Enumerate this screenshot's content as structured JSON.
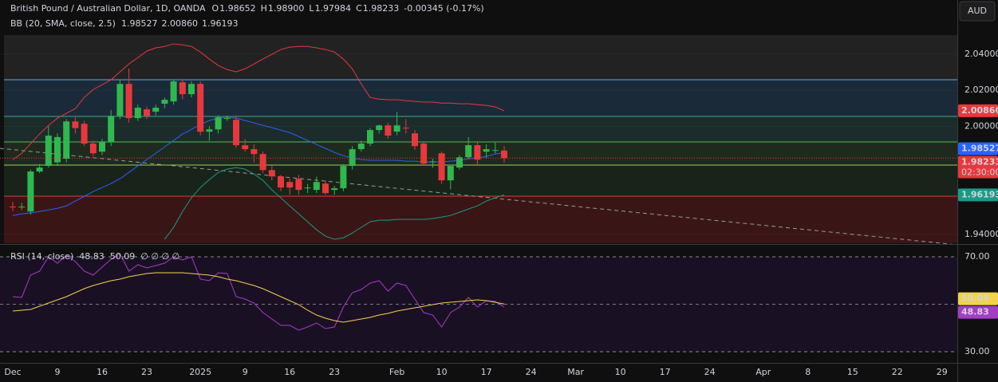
{
  "chart_data": [
    {
      "type": "candlestick",
      "title": "British Pound / Australian Dollar, 1D, OANDA",
      "ohlc_keys": [
        "O",
        "H",
        "L",
        "C"
      ],
      "ohlc_text": [
        "1.98652",
        "1.98900",
        "1.97984",
        "1.98233"
      ],
      "change": "-0.00345 (-0.17%)",
      "currency": "AUD",
      "countdown": "02:30:00",
      "indicator": "BB (20, SMA, close, 2.5)",
      "up_color": "#2fb84f",
      "down_color": "#e8383d",
      "categories": [
        "Dec",
        null,
        null,
        null,
        null,
        "9",
        null,
        null,
        null,
        null,
        "16",
        null,
        null,
        null,
        null,
        "23",
        null,
        null,
        null,
        null,
        null,
        "2025",
        null,
        null,
        null,
        null,
        "9",
        null,
        null,
        null,
        null,
        "16",
        null,
        null,
        null,
        null,
        "23",
        null,
        null,
        null,
        null,
        null,
        null,
        "Feb",
        null,
        null,
        null,
        null,
        "10",
        null,
        null,
        null,
        null,
        "17",
        null,
        null,
        null,
        null,
        "24",
        null,
        null,
        null,
        null,
        "Mar",
        null,
        null,
        null,
        null,
        "10",
        null,
        null,
        null,
        null,
        "17",
        null,
        null,
        null,
        null,
        "24",
        null,
        null,
        null,
        null,
        null,
        "Apr",
        null,
        null,
        null,
        null,
        "8",
        null,
        null,
        null,
        null,
        "15",
        null,
        null,
        null,
        null,
        "22",
        null,
        null,
        null,
        null,
        "29",
        null
      ],
      "open": [
        1.9554,
        1.955,
        1.9527,
        1.9749,
        1.978,
        1.98,
        1.982,
        2.0027,
        2.0014,
        1.9904,
        1.9859,
        1.9912,
        2.0058,
        2.0235,
        2.0045,
        2.0094,
        2.0081,
        2.0125,
        2.0138,
        2.0244,
        2.0178,
        2.0235,
        1.997,
        1.9983,
        2.0045,
        2.0036,
        1.9895,
        1.9873,
        1.9846,
        1.9757,
        1.9722,
        1.9691,
        1.9709,
        1.966,
        1.9647,
        1.9682,
        1.9647,
        1.9656,
        1.978,
        1.9873,
        1.9904,
        1.9979,
        2.0005,
        1.997,
        1.9992,
        1.9961,
        1.9904,
        1.9802,
        1.985,
        1.97,
        1.9771,
        1.9828,
        1.9895,
        1.9859,
        1.9868,
        1.98652,
        null,
        null,
        null,
        null,
        null,
        null,
        null,
        null,
        null,
        null,
        null,
        null,
        null,
        null,
        null,
        null,
        null,
        null,
        null,
        null,
        null,
        null,
        null,
        null,
        null,
        null,
        null,
        null,
        null,
        null,
        null,
        null,
        null,
        null,
        null,
        null,
        null,
        null,
        null,
        null,
        null,
        null,
        null,
        null,
        null,
        null,
        null,
        null,
        null,
        null
      ],
      "high": [
        1.958,
        1.9575,
        1.976,
        1.979,
        2.0,
        1.996,
        2.004,
        2.005,
        2.003,
        1.992,
        1.993,
        2.009,
        2.026,
        2.032,
        2.012,
        2.011,
        2.012,
        2.016,
        2.026,
        2.026,
        2.025,
        2.025,
        2.0,
        2.006,
        2.006,
        2.006,
        1.993,
        1.99,
        1.986,
        1.978,
        1.973,
        1.971,
        1.973,
        1.968,
        1.972,
        1.97,
        1.967,
        1.979,
        1.989,
        1.992,
        1.999,
        2.001,
        2.002,
        2.008,
        2.004,
        1.998,
        1.991,
        1.982,
        1.986,
        1.978,
        1.984,
        1.994,
        1.991,
        1.99,
        1.991,
        1.989,
        null,
        null,
        null,
        null,
        null,
        null,
        null,
        null,
        null,
        null,
        null,
        null,
        null,
        null,
        null,
        null,
        null,
        null,
        null,
        null,
        null,
        null,
        null,
        null,
        null,
        null,
        null,
        null,
        null,
        null,
        null,
        null,
        null,
        null,
        null,
        null,
        null,
        null,
        null,
        null,
        null,
        null,
        null,
        null,
        null,
        null,
        null,
        null,
        null,
        null
      ],
      "low": [
        1.953,
        1.9535,
        1.951,
        1.974,
        1.977,
        1.978,
        1.98,
        1.996,
        1.989,
        1.983,
        1.984,
        1.989,
        2.004,
        2.002,
        2.003,
        2.004,
        2.006,
        2.01,
        2.012,
        2.015,
        2.016,
        1.995,
        1.992,
        1.996,
        2.003,
        1.988,
        1.986,
        1.98,
        1.974,
        1.97,
        1.964,
        1.962,
        1.962,
        1.963,
        1.963,
        1.962,
        1.962,
        1.964,
        1.976,
        1.986,
        1.989,
        1.996,
        1.993,
        1.995,
        1.996,
        1.987,
        1.978,
        1.977,
        1.968,
        1.965,
        1.976,
        1.982,
        1.978,
        1.982,
        1.985,
        1.97984,
        null,
        null,
        null,
        null,
        null,
        null,
        null,
        null,
        null,
        null,
        null,
        null,
        null,
        null,
        null,
        null,
        null,
        null,
        null,
        null,
        null,
        null,
        null,
        null,
        null,
        null,
        null,
        null,
        null,
        null,
        null,
        null,
        null,
        null,
        null,
        null,
        null,
        null,
        null,
        null,
        null,
        null,
        null,
        null,
        null,
        null,
        null,
        null,
        null,
        null
      ],
      "close": [
        1.955,
        1.9554,
        1.9749,
        1.9771,
        1.9948,
        1.994,
        2.0027,
        1.999,
        1.9904,
        1.985,
        1.9912,
        2.0058,
        2.0235,
        2.0045,
        2.0103,
        2.0058,
        2.0103,
        2.0147,
        2.0249,
        2.0178,
        2.0235,
        1.997,
        1.9983,
        2.005,
        2.0045,
        1.9895,
        1.9873,
        1.9846,
        1.9757,
        1.9722,
        1.966,
        1.966,
        1.9647,
        1.966,
        1.9691,
        1.9629,
        1.9656,
        1.978,
        1.9873,
        1.9904,
        1.9979,
        2.0005,
        1.9948,
        2.0005,
        1.999,
        1.989,
        1.9793,
        1.9805,
        1.97,
        1.978,
        1.9828,
        1.9895,
        1.9815,
        1.9873,
        1.9868,
        1.98233,
        null,
        null,
        null,
        null,
        null,
        null,
        null,
        null,
        null,
        null,
        null,
        null,
        null,
        null,
        null,
        null,
        null,
        null,
        null,
        null,
        null,
        null,
        null,
        null,
        null,
        null,
        null,
        null,
        null,
        null,
        null,
        null,
        null,
        null,
        null,
        null,
        null,
        null,
        null,
        null,
        null,
        null,
        null,
        null,
        null,
        null,
        null,
        null,
        null,
        null
      ],
      "close_label": "1.98233",
      "series": [
        {
          "color": "#2962ff",
          "last_label": "1.98527",
          "values": [
            1.9505,
            1.9514,
            1.9519,
            1.9527,
            1.9536,
            1.9545,
            1.9558,
            1.9585,
            1.9611,
            1.9638,
            1.966,
            1.9682,
            1.9709,
            1.9744,
            1.978,
            1.9815,
            1.985,
            1.9886,
            1.9921,
            1.9957,
            1.9983,
            2.001,
            2.0032,
            2.0045,
            2.005,
            2.0045,
            2.0032,
            2.0019,
            2.0005,
            1.9992,
            1.9979,
            1.9965,
            1.9943,
            1.9921,
            1.9899,
            1.9877,
            1.9855,
            1.9837,
            1.9824,
            1.9815,
            1.9811,
            1.9811,
            1.9811,
            1.9811,
            1.9806,
            1.9806,
            1.9802,
            1.9802,
            1.9802,
            1.9806,
            1.9811,
            1.9819,
            1.9824,
            1.9833,
            1.9846,
            1.98527,
            null,
            null,
            null,
            null,
            null,
            null,
            null,
            null,
            null,
            null,
            null,
            null,
            null,
            null,
            null,
            null,
            null,
            null,
            null,
            null,
            null,
            null,
            null,
            null,
            null,
            null,
            null,
            null,
            null,
            null,
            null,
            null,
            null,
            null,
            null,
            null,
            null,
            null,
            null,
            null,
            null,
            null,
            null,
            null,
            null,
            null,
            null,
            null,
            null,
            null
          ]
        },
        {
          "color": "#e8383d",
          "last_label": "2.00860",
          "values": [
            1.9815,
            1.985,
            1.9904,
            1.9957,
            2.0005,
            2.0045,
            2.0072,
            2.0098,
            2.016,
            2.0204,
            2.0231,
            2.0258,
            2.0302,
            2.0346,
            2.0381,
            2.0417,
            2.0435,
            2.0443,
            2.0457,
            2.0452,
            2.0443,
            2.0412,
            2.0373,
            2.0337,
            2.0315,
            2.0302,
            2.0319,
            2.0346,
            2.0373,
            2.0399,
            2.0426,
            2.0439,
            2.0443,
            2.0443,
            2.0435,
            2.0426,
            2.0412,
            2.0373,
            2.0319,
            2.0235,
            2.016,
            2.0151,
            2.0147,
            2.0147,
            2.0142,
            2.0138,
            2.0134,
            2.0134,
            2.0129,
            2.0129,
            2.0125,
            2.0125,
            2.012,
            2.0116,
            2.0107,
            2.0086,
            null,
            null,
            null,
            null,
            null,
            null,
            null,
            null,
            null,
            null,
            null,
            null,
            null,
            null,
            null,
            null,
            null,
            null,
            null,
            null,
            null,
            null,
            null,
            null,
            null,
            null,
            null,
            null,
            null,
            null,
            null,
            null,
            null,
            null,
            null,
            null,
            null,
            null,
            null,
            null,
            null,
            null,
            null,
            null,
            null,
            null,
            null,
            null,
            null,
            null
          ]
        },
        {
          "color": "#1a9a86",
          "last_label": "1.96193",
          "values": [
            null,
            null,
            null,
            null,
            null,
            null,
            null,
            null,
            null,
            null,
            null,
            null,
            null,
            null,
            null,
            null,
            null,
            1.9373,
            1.9439,
            1.9527,
            1.9603,
            1.966,
            1.9704,
            1.9744,
            1.9762,
            1.9771,
            1.9762,
            1.9735,
            1.97,
            1.9647,
            1.9603,
            1.9558,
            1.9514,
            1.947,
            1.9426,
            1.939,
            1.9373,
            1.9381,
            1.9408,
            1.9439,
            1.947,
            1.9479,
            1.9479,
            1.9483,
            1.9483,
            1.9483,
            1.9483,
            1.9488,
            1.9496,
            1.9505,
            1.9523,
            1.9541,
            1.9558,
            1.9585,
            1.9603,
            1.96193,
            null,
            null,
            null,
            null,
            null,
            null,
            null,
            null,
            null,
            null,
            null,
            null,
            null,
            null,
            null,
            null,
            null,
            null,
            null,
            null,
            null,
            null,
            null,
            null,
            null,
            null,
            null,
            null,
            null,
            null,
            null,
            null,
            null,
            null,
            null,
            null,
            null,
            null,
            null,
            null,
            null,
            null,
            null,
            null,
            null,
            null,
            null,
            null,
            null,
            null
          ]
        }
      ],
      "ylim": [
        1.9351,
        2.0506
      ],
      "yticks": [
        {
          "value": 2.04,
          "label": "2.04000"
        },
        {
          "value": 2.02,
          "label": "2.02000"
        },
        {
          "value": 2.0,
          "label": "2.00000"
        },
        {
          "value": 1.94,
          "label": "1.94000"
        }
      ]
    },
    {
      "type": "line",
      "title": "RSI (14, close)",
      "extra_label": "∅ ∅ ∅ ∅",
      "series": [
        {
          "color": "#a23fc4",
          "last_label": "48.83",
          "values": [
            53.19,
            52.86,
            62.27,
            63.95,
            70,
            67.31,
            70.67,
            67.98,
            63.95,
            62.27,
            65.63,
            68.99,
            71.34,
            63.95,
            66.64,
            65.29,
            66.3,
            67.31,
            70,
            68.66,
            70,
            60.59,
            59.92,
            63.28,
            62.94,
            53.19,
            52.18,
            50.5,
            46.47,
            43.78,
            41.09,
            41.09,
            39.08,
            40.42,
            42.1,
            39.75,
            40.42,
            48.82,
            54.87,
            56.22,
            58.91,
            59.92,
            55.55,
            58.91,
            57.9,
            52.18,
            46.47,
            45.46,
            40.42,
            46.47,
            48.82,
            52.86,
            48.82,
            51.51,
            51.18,
            48.83,
            null,
            null,
            null,
            null,
            null,
            null,
            null,
            null,
            null,
            null,
            null,
            null,
            null,
            null,
            null,
            null,
            null,
            null,
            null,
            null,
            null,
            null,
            null,
            null,
            null,
            null,
            null,
            null,
            null,
            null,
            null,
            null,
            null,
            null,
            null,
            null,
            null,
            null,
            null,
            null,
            null,
            null,
            null,
            null,
            null,
            null,
            null,
            null,
            null,
            null
          ]
        },
        {
          "color": "#f2d34a",
          "last_label": "50.09",
          "values": [
            47.14,
            47.48,
            47.82,
            49.16,
            50.5,
            51.85,
            53.19,
            54.87,
            56.55,
            57.9,
            58.91,
            59.92,
            60.59,
            61.6,
            62.27,
            62.94,
            63.28,
            63.28,
            63.28,
            63.28,
            62.94,
            62.61,
            62.27,
            61.6,
            60.59,
            59.92,
            58.91,
            57.9,
            56.55,
            54.87,
            53.19,
            51.51,
            49.83,
            47.48,
            45.46,
            44.12,
            43.11,
            42.44,
            43.11,
            43.78,
            44.45,
            45.46,
            46.13,
            47.14,
            47.82,
            48.49,
            49.16,
            49.83,
            50.5,
            50.84,
            51.18,
            51.51,
            51.85,
            51.51,
            50.84,
            50.09,
            null,
            null,
            null,
            null,
            null,
            null,
            null,
            null,
            null,
            null,
            null,
            null,
            null,
            null,
            null,
            null,
            null,
            null,
            null,
            null,
            null,
            null,
            null,
            null,
            null,
            null,
            null,
            null,
            null,
            null,
            null,
            null,
            null,
            null,
            null,
            null,
            null,
            null,
            null,
            null,
            null,
            null,
            null,
            null,
            null,
            null,
            null,
            null,
            null,
            null
          ]
        }
      ],
      "ylim": [
        25.3,
        74.7
      ],
      "yticks": [
        {
          "value": 70,
          "label": "70.00"
        },
        {
          "value": 30,
          "label": "30.00"
        }
      ]
    }
  ]
}
